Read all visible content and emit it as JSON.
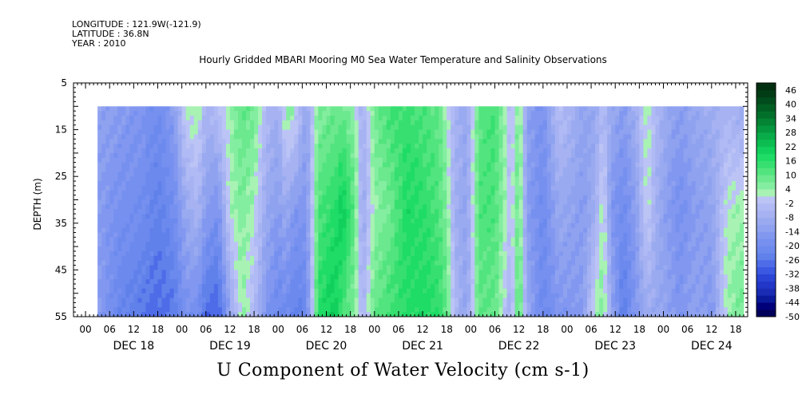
{
  "header": {
    "longitude": "LONGITUDE : 121.9W(-121.9)",
    "latitude": "LATITUDE : 36.8N",
    "year": "YEAR : 2010"
  },
  "chart_data": {
    "type": "heatmap",
    "title": "Hourly Gridded MBARI Mooring M0 Sea Water Temperature and Salinity Observations",
    "bottom_title": "U Component of Water Velocity (cm s-1)",
    "ylabel": "DEPTH (m)",
    "y_reversed": true,
    "ylim": [
      5,
      55
    ],
    "data_depth_range": [
      10,
      55
    ],
    "ytick_labels": [
      "5",
      "15",
      "25",
      "35",
      "45",
      "55"
    ],
    "yticks": [
      5,
      15,
      25,
      35,
      45,
      55
    ],
    "xlim_hours": [
      -3,
      165
    ],
    "data_time_range_hours": [
      3,
      164
    ],
    "xtick_labels": [
      "00",
      "06",
      "12",
      "18",
      "00",
      "06",
      "12",
      "18",
      "00",
      "06",
      "12",
      "18",
      "00",
      "06",
      "12",
      "18",
      "00",
      "06",
      "12",
      "18",
      "00",
      "06",
      "12",
      "18",
      "00",
      "06",
      "12",
      "18"
    ],
    "date_labels": [
      "DEC 18",
      "DEC 19",
      "DEC 20",
      "DEC 21",
      "DEC 22",
      "DEC 23",
      "DEC 24"
    ],
    "colorbar": {
      "labels": [
        "46",
        "40",
        "34",
        "28",
        "22",
        "16",
        "10",
        "4",
        "-2",
        "-8",
        "-14",
        "-20",
        "-26",
        "-32",
        "-38",
        "-44",
        "-50"
      ],
      "levels": [
        -50,
        -47,
        -44,
        -41,
        -38,
        -35,
        -32,
        -29,
        -26,
        -23,
        -20,
        -17,
        -14,
        -11,
        -8,
        -5,
        -2,
        1,
        4,
        7,
        10,
        13,
        16,
        19,
        22,
        25,
        28,
        31,
        34,
        37,
        40,
        43,
        46,
        49
      ],
      "colors": [
        "#00005a",
        "#00007a",
        "#0a1a9a",
        "#1a2cb4",
        "#2236c8",
        "#2a44d6",
        "#3a58e2",
        "#4e6ce8",
        "#6080ea",
        "#6c8aee",
        "#7690f0",
        "#8298f0",
        "#8ea2f0",
        "#9aaaf0",
        "#a6b2f2",
        "#b0baf4",
        "#bcc4f6",
        "#a8f2b4",
        "#84eea0",
        "#6ce88e",
        "#52e47e",
        "#36df70",
        "#1edc66",
        "#12d05c",
        "#0cbe52",
        "#08ac48",
        "#06983e",
        "#048434",
        "#02702a",
        "#015e22",
        "#014c1c",
        "#013c16",
        "#012e10"
      ]
    },
    "profiles": [
      {
        "t": 3,
        "u": [
          -12,
          -14,
          -13
        ]
      },
      {
        "t": 8,
        "u": [
          -14,
          -18,
          -22
        ]
      },
      {
        "t": 14,
        "u": [
          -16,
          -20,
          -26
        ]
      },
      {
        "t": 18,
        "u": [
          -20,
          -24,
          -28
        ]
      },
      {
        "t": 22,
        "u": [
          -14,
          -20,
          -26
        ]
      },
      {
        "t": 25,
        "u": [
          2,
          -10,
          -18
        ]
      },
      {
        "t": 28,
        "u": [
          4,
          -6,
          -20
        ]
      },
      {
        "t": 30,
        "u": [
          -6,
          -14,
          -28
        ]
      },
      {
        "t": 33,
        "u": [
          -2,
          -18,
          -30
        ]
      },
      {
        "t": 36,
        "u": [
          4,
          2,
          -12
        ]
      },
      {
        "t": 39,
        "u": [
          10,
          6,
          4
        ]
      },
      {
        "t": 42,
        "u": [
          8,
          2,
          -4
        ]
      },
      {
        "t": 45,
        "u": [
          -4,
          -10,
          -16
        ]
      },
      {
        "t": 48,
        "u": [
          -8,
          -14,
          -22
        ]
      },
      {
        "t": 50,
        "u": [
          6,
          -10,
          -20
        ]
      },
      {
        "t": 52,
        "u": [
          4,
          -16,
          -24
        ]
      },
      {
        "t": 55,
        "u": [
          -12,
          -16,
          -22
        ]
      },
      {
        "t": 58,
        "u": [
          6,
          12,
          16
        ]
      },
      {
        "t": 62,
        "u": [
          8,
          16,
          22
        ]
      },
      {
        "t": 64,
        "u": [
          8,
          22,
          12
        ]
      },
      {
        "t": 67,
        "u": [
          4,
          10,
          6
        ]
      },
      {
        "t": 69,
        "u": [
          -8,
          -10,
          -6
        ]
      },
      {
        "t": 72,
        "u": [
          8,
          4,
          10
        ]
      },
      {
        "t": 76,
        "u": [
          14,
          8,
          14
        ]
      },
      {
        "t": 80,
        "u": [
          14,
          18,
          16
        ]
      },
      {
        "t": 84,
        "u": [
          12,
          16,
          18
        ]
      },
      {
        "t": 88,
        "u": [
          10,
          12,
          16
        ]
      },
      {
        "t": 90,
        "u": [
          2,
          6,
          10
        ]
      },
      {
        "t": 92,
        "u": [
          -6,
          -8,
          -4
        ]
      },
      {
        "t": 95,
        "u": [
          -10,
          -12,
          -12
        ]
      },
      {
        "t": 98,
        "u": [
          10,
          12,
          10
        ]
      },
      {
        "t": 102,
        "u": [
          14,
          12,
          10
        ]
      },
      {
        "t": 106,
        "u": [
          -4,
          -2,
          -8
        ]
      },
      {
        "t": 108,
        "u": [
          8,
          10,
          14
        ]
      },
      {
        "t": 110,
        "u": [
          -12,
          -14,
          -10
        ]
      },
      {
        "t": 114,
        "u": [
          -18,
          -20,
          -22
        ]
      },
      {
        "t": 118,
        "u": [
          -2,
          -10,
          -16
        ]
      },
      {
        "t": 121,
        "u": [
          -6,
          -12,
          -16
        ]
      },
      {
        "t": 124,
        "u": [
          -12,
          -14,
          -14
        ]
      },
      {
        "t": 127,
        "u": [
          -10,
          -8,
          4
        ]
      },
      {
        "t": 129,
        "u": [
          -4,
          4,
          6
        ]
      },
      {
        "t": 131,
        "u": [
          -10,
          -16,
          -10
        ]
      },
      {
        "t": 134,
        "u": [
          -14,
          -20,
          -26
        ]
      },
      {
        "t": 137,
        "u": [
          -8,
          -14,
          -16
        ]
      },
      {
        "t": 140,
        "u": [
          4,
          2,
          -10
        ]
      },
      {
        "t": 142,
        "u": [
          -4,
          -8,
          -10
        ]
      },
      {
        "t": 145,
        "u": [
          -10,
          -14,
          -12
        ]
      },
      {
        "t": 148,
        "u": [
          -14,
          -18,
          -16
        ]
      },
      {
        "t": 152,
        "u": [
          -10,
          -14,
          -12
        ]
      },
      {
        "t": 156,
        "u": [
          -8,
          -12,
          -16
        ]
      },
      {
        "t": 160,
        "u": [
          -6,
          2,
          4
        ]
      },
      {
        "t": 164,
        "u": [
          -10,
          4,
          8
        ]
      }
    ]
  }
}
